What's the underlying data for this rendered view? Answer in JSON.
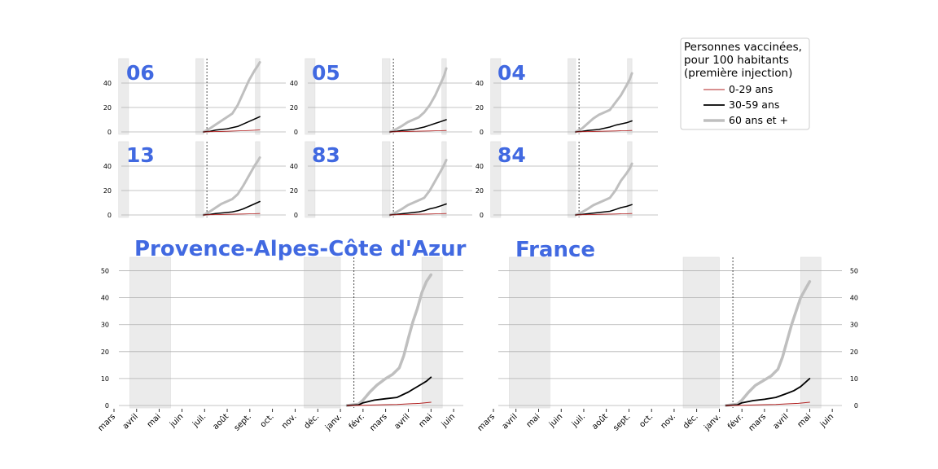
{
  "legend": {
    "title_lines": [
      "Personnes vaccinées,",
      "pour 100 habitants",
      "(première injection)"
    ],
    "entries": [
      {
        "label": "0-29 ans",
        "color": "#b22222"
      },
      {
        "label": "30-59 ans",
        "color": "#000000"
      },
      {
        "label": "60 ans et +",
        "color": "#bfbfbf"
      }
    ]
  },
  "colors": {
    "title": "#4169e1",
    "grid": "#b0b0b0",
    "shade": "#ebebeb"
  },
  "month_labels": [
    "mars",
    "avril",
    "mai",
    "juin",
    "juil.",
    "août",
    "sept.",
    "oct.",
    "nov.",
    "déc.",
    "janv.",
    "févr.",
    "mars",
    "avril",
    "mai",
    "juin"
  ],
  "chart_data": [
    {
      "type": "line",
      "title": "06",
      "ylim": [
        0,
        60
      ],
      "yticks": [
        0,
        20,
        40
      ],
      "x_unit": "months since 2020-03-01",
      "xlim": [
        0,
        15.5
      ],
      "shaded_periods": [
        [
          0.2,
          1.1
        ],
        [
          7.2,
          7.9
        ],
        [
          12.6,
          13.0
        ]
      ],
      "vline": 8.2,
      "series": [
        {
          "name": "0-29 ans",
          "x": [
            7.9,
            8.5,
            9.5,
            10.5,
            11.5,
            12.3,
            13.0
          ],
          "y": [
            0,
            0.2,
            0.4,
            0.7,
            1.0,
            1.3,
            1.6
          ]
        },
        {
          "name": "30-59 ans",
          "x": [
            7.9,
            8.5,
            9.0,
            10.0,
            10.5,
            11.0,
            11.5,
            12.0,
            12.5,
            13.0
          ],
          "y": [
            0,
            0.5,
            1.5,
            2.5,
            3.5,
            4.5,
            6.5,
            8.5,
            10.5,
            12.5
          ]
        },
        {
          "name": "60 ans et +",
          "x": [
            7.9,
            8.5,
            9.0,
            9.5,
            10.0,
            10.5,
            11.0,
            11.5,
            12.0,
            12.5,
            12.8,
            13.0
          ],
          "y": [
            0,
            3,
            6,
            9,
            12,
            15,
            22,
            32,
            42,
            50,
            54,
            57
          ]
        }
      ]
    },
    {
      "type": "line",
      "title": "05",
      "ylim": [
        0,
        60
      ],
      "yticks": [
        0,
        20,
        40
      ],
      "x_unit": "months since 2020-03-01",
      "xlim": [
        0,
        15.5
      ],
      "shaded_periods": [
        [
          0.2,
          1.1
        ],
        [
          7.2,
          7.9
        ],
        [
          12.6,
          13.0
        ]
      ],
      "vline": 8.2,
      "series": [
        {
          "name": "0-29 ans",
          "x": [
            7.9,
            8.5,
            9.5,
            10.5,
            11.5,
            12.3,
            13.0
          ],
          "y": [
            0,
            0.2,
            0.4,
            0.6,
            0.8,
            1.0,
            1.2
          ]
        },
        {
          "name": "30-59 ans",
          "x": [
            7.9,
            8.5,
            9.0,
            10.0,
            10.5,
            11.0,
            11.5,
            12.0,
            12.5,
            13.0
          ],
          "y": [
            0,
            0.5,
            1.2,
            2.0,
            3.0,
            4.0,
            5.5,
            7.0,
            8.5,
            10.0
          ]
        },
        {
          "name": "60 ans et +",
          "x": [
            7.9,
            8.5,
            9.0,
            9.5,
            10.0,
            10.5,
            11.0,
            11.5,
            12.0,
            12.5,
            12.8,
            13.0
          ],
          "y": [
            0,
            2.5,
            5,
            8,
            10,
            12,
            16,
            22,
            30,
            40,
            46,
            52
          ]
        }
      ]
    },
    {
      "type": "line",
      "title": "04",
      "ylim": [
        0,
        60
      ],
      "yticks": [
        0,
        20,
        40
      ],
      "x_unit": "months since 2020-03-01",
      "xlim": [
        0,
        15.5
      ],
      "shaded_periods": [
        [
          0.2,
          1.1
        ],
        [
          7.2,
          7.9
        ],
        [
          12.6,
          13.0
        ]
      ],
      "vline": 8.2,
      "series": [
        {
          "name": "0-29 ans",
          "x": [
            7.9,
            8.5,
            9.5,
            10.5,
            11.5,
            12.3,
            13.0
          ],
          "y": [
            0,
            0.2,
            0.4,
            0.6,
            0.8,
            1.0,
            1.2
          ]
        },
        {
          "name": "30-59 ans",
          "x": [
            7.9,
            8.5,
            9.0,
            10.0,
            10.5,
            11.0,
            11.5,
            12.0,
            12.5,
            13.0
          ],
          "y": [
            0,
            0.5,
            1.2,
            2.0,
            3.0,
            4.0,
            5.5,
            6.5,
            7.5,
            9.0
          ]
        },
        {
          "name": "60 ans et +",
          "x": [
            7.9,
            8.5,
            9.0,
            9.5,
            10.0,
            10.5,
            11.0,
            11.5,
            12.0,
            12.5,
            12.8,
            13.0
          ],
          "y": [
            0,
            3,
            7,
            11,
            14,
            16,
            18,
            24,
            30,
            38,
            43,
            48
          ]
        }
      ]
    },
    {
      "type": "line",
      "title": "13",
      "ylim": [
        0,
        60
      ],
      "yticks": [
        0,
        20,
        40
      ],
      "x_unit": "months since 2020-03-01",
      "xlim": [
        0,
        15.5
      ],
      "shaded_periods": [
        [
          0.2,
          1.1
        ],
        [
          7.2,
          7.9
        ],
        [
          12.6,
          13.0
        ]
      ],
      "vline": 8.2,
      "series": [
        {
          "name": "0-29 ans",
          "x": [
            7.9,
            8.5,
            9.5,
            10.5,
            11.5,
            12.3,
            13.0
          ],
          "y": [
            0,
            0.2,
            0.4,
            0.6,
            0.8,
            1.0,
            1.2
          ]
        },
        {
          "name": "30-59 ans",
          "x": [
            7.9,
            8.5,
            9.0,
            10.0,
            10.5,
            11.0,
            11.5,
            12.0,
            12.5,
            13.0
          ],
          "y": [
            0,
            0.5,
            1.2,
            2.0,
            2.5,
            3.5,
            5.0,
            7.0,
            9.0,
            11.0
          ]
        },
        {
          "name": "60 ans et +",
          "x": [
            7.9,
            8.5,
            9.0,
            9.5,
            10.0,
            10.5,
            11.0,
            11.5,
            12.0,
            12.5,
            12.8,
            13.0
          ],
          "y": [
            0,
            3,
            6,
            9,
            11,
            13,
            17,
            24,
            32,
            40,
            44,
            47
          ]
        }
      ]
    },
    {
      "type": "line",
      "title": "83",
      "ylim": [
        0,
        60
      ],
      "yticks": [
        0,
        20,
        40
      ],
      "x_unit": "months since 2020-03-01",
      "xlim": [
        0,
        15.5
      ],
      "shaded_periods": [
        [
          0.2,
          1.1
        ],
        [
          7.2,
          7.9
        ],
        [
          12.6,
          13.0
        ]
      ],
      "vline": 8.2,
      "series": [
        {
          "name": "0-29 ans",
          "x": [
            7.9,
            8.5,
            9.5,
            10.5,
            11.5,
            12.3,
            13.0
          ],
          "y": [
            0,
            0.2,
            0.4,
            0.6,
            0.8,
            1.0,
            1.2
          ]
        },
        {
          "name": "30-59 ans",
          "x": [
            7.9,
            8.5,
            9.0,
            10.0,
            10.5,
            11.0,
            11.5,
            12.0,
            12.5,
            13.0
          ],
          "y": [
            0,
            0.5,
            1.0,
            2.0,
            2.5,
            3.5,
            5.0,
            6.0,
            7.5,
            9.0
          ]
        },
        {
          "name": "60 ans et +",
          "x": [
            7.9,
            8.5,
            9.0,
            9.5,
            10.0,
            10.5,
            11.0,
            11.5,
            12.0,
            12.5,
            12.8,
            13.0
          ],
          "y": [
            0,
            2.5,
            5,
            8,
            10,
            12,
            14,
            20,
            28,
            36,
            41,
            45
          ]
        }
      ]
    },
    {
      "type": "line",
      "title": "84",
      "ylim": [
        0,
        60
      ],
      "yticks": [
        0,
        20,
        40
      ],
      "x_unit": "months since 2020-03-01",
      "xlim": [
        0,
        15.5
      ],
      "shaded_periods": [
        [
          0.2,
          1.1
        ],
        [
          7.2,
          7.9
        ],
        [
          12.6,
          13.0
        ]
      ],
      "vline": 8.2,
      "series": [
        {
          "name": "0-29 ans",
          "x": [
            7.9,
            8.5,
            9.5,
            10.5,
            11.5,
            12.3,
            13.0
          ],
          "y": [
            0,
            0.2,
            0.4,
            0.6,
            0.8,
            1.0,
            1.2
          ]
        },
        {
          "name": "30-59 ans",
          "x": [
            7.9,
            8.5,
            9.0,
            10.0,
            10.5,
            11.0,
            11.5,
            12.0,
            12.5,
            13.0
          ],
          "y": [
            0,
            0.5,
            1.0,
            2.0,
            2.5,
            3.0,
            4.5,
            6.0,
            7.0,
            8.5
          ]
        },
        {
          "name": "60 ans et +",
          "x": [
            7.9,
            8.5,
            9.0,
            9.5,
            10.0,
            10.5,
            11.0,
            11.5,
            12.0,
            12.5,
            12.8,
            13.0
          ],
          "y": [
            0,
            2.5,
            5,
            8,
            10,
            12,
            14,
            20,
            28,
            34,
            38,
            42
          ]
        }
      ]
    },
    {
      "type": "line",
      "title": "Provence-Alpes-Côte d'Azur",
      "ylim": [
        0,
        55
      ],
      "yticks": [
        0,
        10,
        20,
        30,
        40,
        50
      ],
      "x_unit": "months since 2020-03-01",
      "xlim": [
        0,
        15.5
      ],
      "shaded_periods": [
        [
          0.7,
          2.5
        ],
        [
          8.4,
          10.0
        ],
        [
          13.6,
          14.5
        ]
      ],
      "vline": 10.6,
      "series": [
        {
          "name": "0-29 ans",
          "x": [
            10.3,
            11.0,
            12.0,
            12.5,
            13.0,
            13.5,
            14.0
          ],
          "y": [
            0,
            0.1,
            0.3,
            0.4,
            0.6,
            0.8,
            1.2
          ]
        },
        {
          "name": "30-59 ans",
          "x": [
            10.3,
            10.8,
            11.0,
            11.5,
            12.0,
            12.5,
            13.0,
            13.3,
            13.6,
            13.8,
            14.0
          ],
          "y": [
            0,
            0.2,
            1.0,
            2.0,
            2.5,
            3.0,
            5.0,
            6.5,
            8.0,
            9.0,
            10.5
          ]
        },
        {
          "name": "60 ans et +",
          "x": [
            10.3,
            10.8,
            11.0,
            11.3,
            11.6,
            12.0,
            12.3,
            12.6,
            12.8,
            13.0,
            13.2,
            13.4,
            13.6,
            13.8,
            14.0
          ],
          "y": [
            0,
            0.5,
            2.0,
            5.0,
            7.5,
            10.0,
            11.5,
            14.0,
            18.5,
            25.0,
            31.0,
            36.0,
            42.0,
            46.0,
            48.5
          ]
        }
      ]
    },
    {
      "type": "line",
      "title": "France",
      "ylim": [
        0,
        55
      ],
      "yticks": [
        0,
        10,
        20,
        30,
        40,
        50
      ],
      "x_unit": "months since 2020-03-01",
      "xlim": [
        0,
        15.5
      ],
      "shaded_periods": [
        [
          0.7,
          2.5
        ],
        [
          8.4,
          10.0
        ],
        [
          13.6,
          14.5
        ]
      ],
      "vline": 10.6,
      "series": [
        {
          "name": "0-29 ans",
          "x": [
            10.3,
            11.0,
            12.0,
            12.5,
            13.0,
            13.5,
            14.0
          ],
          "y": [
            0,
            0.1,
            0.3,
            0.4,
            0.6,
            0.8,
            1.2
          ]
        },
        {
          "name": "30-59 ans",
          "x": [
            10.3,
            10.8,
            11.0,
            11.5,
            12.0,
            12.5,
            13.0,
            13.3,
            13.6,
            13.8,
            14.0
          ],
          "y": [
            0,
            0.2,
            1.0,
            1.8,
            2.3,
            3.0,
            4.5,
            5.5,
            7.0,
            8.5,
            10.0
          ]
        },
        {
          "name": "60 ans et +",
          "x": [
            10.3,
            10.8,
            11.0,
            11.3,
            11.6,
            12.0,
            12.3,
            12.6,
            12.8,
            13.0,
            13.2,
            13.4,
            13.6,
            13.8,
            14.0
          ],
          "y": [
            0,
            0.5,
            2.0,
            5.0,
            7.5,
            9.5,
            11.0,
            13.5,
            18.0,
            24.0,
            30.0,
            35.0,
            40.0,
            43.0,
            46.0
          ]
        }
      ]
    }
  ]
}
